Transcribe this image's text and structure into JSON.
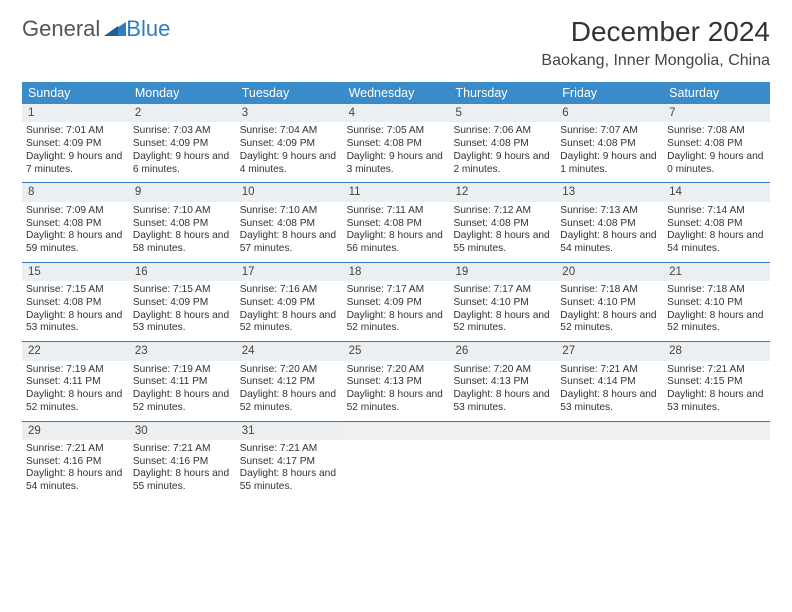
{
  "brand": {
    "part1": "General",
    "part2": "Blue"
  },
  "title": "December 2024",
  "location": "Baokang, Inner Mongolia, China",
  "colors": {
    "header_bg": "#3a8bc9",
    "header_text": "#ffffff",
    "rule": "#2f7ec1",
    "numbar_bg": "#eceff1",
    "text": "#333333",
    "page_bg": "#ffffff"
  },
  "fonts": {
    "title_size_pt": 21,
    "location_size_pt": 12,
    "dayhead_size_pt": 9.5,
    "cell_size_pt": 7.7
  },
  "day_names": [
    "Sunday",
    "Monday",
    "Tuesday",
    "Wednesday",
    "Thursday",
    "Friday",
    "Saturday"
  ],
  "weeks": [
    [
      {
        "n": "1",
        "sunrise": "7:01 AM",
        "sunset": "4:09 PM",
        "day_h": "9",
        "day_m": "7"
      },
      {
        "n": "2",
        "sunrise": "7:03 AM",
        "sunset": "4:09 PM",
        "day_h": "9",
        "day_m": "6"
      },
      {
        "n": "3",
        "sunrise": "7:04 AM",
        "sunset": "4:09 PM",
        "day_h": "9",
        "day_m": "4"
      },
      {
        "n": "4",
        "sunrise": "7:05 AM",
        "sunset": "4:08 PM",
        "day_h": "9",
        "day_m": "3"
      },
      {
        "n": "5",
        "sunrise": "7:06 AM",
        "sunset": "4:08 PM",
        "day_h": "9",
        "day_m": "2"
      },
      {
        "n": "6",
        "sunrise": "7:07 AM",
        "sunset": "4:08 PM",
        "day_h": "9",
        "day_m": "1"
      },
      {
        "n": "7",
        "sunrise": "7:08 AM",
        "sunset": "4:08 PM",
        "day_h": "9",
        "day_m": "0"
      }
    ],
    [
      {
        "n": "8",
        "sunrise": "7:09 AM",
        "sunset": "4:08 PM",
        "day_h": "8",
        "day_m": "59"
      },
      {
        "n": "9",
        "sunrise": "7:10 AM",
        "sunset": "4:08 PM",
        "day_h": "8",
        "day_m": "58"
      },
      {
        "n": "10",
        "sunrise": "7:10 AM",
        "sunset": "4:08 PM",
        "day_h": "8",
        "day_m": "57"
      },
      {
        "n": "11",
        "sunrise": "7:11 AM",
        "sunset": "4:08 PM",
        "day_h": "8",
        "day_m": "56"
      },
      {
        "n": "12",
        "sunrise": "7:12 AM",
        "sunset": "4:08 PM",
        "day_h": "8",
        "day_m": "55"
      },
      {
        "n": "13",
        "sunrise": "7:13 AM",
        "sunset": "4:08 PM",
        "day_h": "8",
        "day_m": "54"
      },
      {
        "n": "14",
        "sunrise": "7:14 AM",
        "sunset": "4:08 PM",
        "day_h": "8",
        "day_m": "54"
      }
    ],
    [
      {
        "n": "15",
        "sunrise": "7:15 AM",
        "sunset": "4:08 PM",
        "day_h": "8",
        "day_m": "53"
      },
      {
        "n": "16",
        "sunrise": "7:15 AM",
        "sunset": "4:09 PM",
        "day_h": "8",
        "day_m": "53"
      },
      {
        "n": "17",
        "sunrise": "7:16 AM",
        "sunset": "4:09 PM",
        "day_h": "8",
        "day_m": "52"
      },
      {
        "n": "18",
        "sunrise": "7:17 AM",
        "sunset": "4:09 PM",
        "day_h": "8",
        "day_m": "52"
      },
      {
        "n": "19",
        "sunrise": "7:17 AM",
        "sunset": "4:10 PM",
        "day_h": "8",
        "day_m": "52"
      },
      {
        "n": "20",
        "sunrise": "7:18 AM",
        "sunset": "4:10 PM",
        "day_h": "8",
        "day_m": "52"
      },
      {
        "n": "21",
        "sunrise": "7:18 AM",
        "sunset": "4:10 PM",
        "day_h": "8",
        "day_m": "52"
      }
    ],
    [
      {
        "n": "22",
        "sunrise": "7:19 AM",
        "sunset": "4:11 PM",
        "day_h": "8",
        "day_m": "52"
      },
      {
        "n": "23",
        "sunrise": "7:19 AM",
        "sunset": "4:11 PM",
        "day_h": "8",
        "day_m": "52"
      },
      {
        "n": "24",
        "sunrise": "7:20 AM",
        "sunset": "4:12 PM",
        "day_h": "8",
        "day_m": "52"
      },
      {
        "n": "25",
        "sunrise": "7:20 AM",
        "sunset": "4:13 PM",
        "day_h": "8",
        "day_m": "52"
      },
      {
        "n": "26",
        "sunrise": "7:20 AM",
        "sunset": "4:13 PM",
        "day_h": "8",
        "day_m": "53"
      },
      {
        "n": "27",
        "sunrise": "7:21 AM",
        "sunset": "4:14 PM",
        "day_h": "8",
        "day_m": "53"
      },
      {
        "n": "28",
        "sunrise": "7:21 AM",
        "sunset": "4:15 PM",
        "day_h": "8",
        "day_m": "53"
      }
    ],
    [
      {
        "n": "29",
        "sunrise": "7:21 AM",
        "sunset": "4:16 PM",
        "day_h": "8",
        "day_m": "54"
      },
      {
        "n": "30",
        "sunrise": "7:21 AM",
        "sunset": "4:16 PM",
        "day_h": "8",
        "day_m": "55"
      },
      {
        "n": "31",
        "sunrise": "7:21 AM",
        "sunset": "4:17 PM",
        "day_h": "8",
        "day_m": "55"
      },
      {
        "empty": true
      },
      {
        "empty": true
      },
      {
        "empty": true
      },
      {
        "empty": true
      }
    ]
  ],
  "labels": {
    "sunrise": "Sunrise: ",
    "sunset": "Sunset: ",
    "daylight_prefix": "Daylight: ",
    "hours_word": " hours",
    "and_word": "and ",
    "minutes_word": " minutes."
  }
}
